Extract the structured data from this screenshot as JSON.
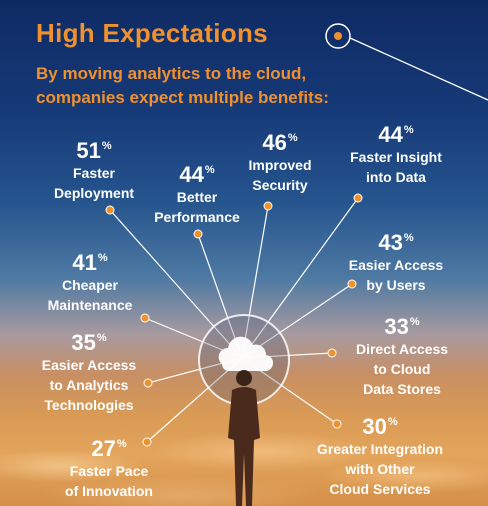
{
  "title": "High Expectations",
  "subtitle": "By moving analytics to the cloud, companies expect multiple benefits:",
  "stats": [
    {
      "pct": "51",
      "label1": "Faster",
      "label2": "Deployment"
    },
    {
      "pct": "44",
      "label1": "Better",
      "label2": "Performance"
    },
    {
      "pct": "46",
      "label1": "Improved",
      "label2": "Security"
    },
    {
      "pct": "44",
      "label1": "Faster Insight",
      "label2": "into Data"
    },
    {
      "pct": "43",
      "label1": "Easier Access",
      "label2": "by Users"
    },
    {
      "pct": "41",
      "label1": "Cheaper",
      "label2": "Maintenance"
    },
    {
      "pct": "35",
      "label1": "Easier Access",
      "label2": "to Analytics",
      "label3": "Technologies"
    },
    {
      "pct": "33",
      "label1": "Direct Access",
      "label2": "to Cloud",
      "label3": "Data Stores"
    },
    {
      "pct": "27",
      "label1": "Faster Pace",
      "label2": "of Innovation"
    },
    {
      "pct": "30",
      "label1": "Greater Integration",
      "label2": "with Other",
      "label3": "Cloud Services"
    }
  ],
  "percent_sign": "%",
  "icons": {
    "hub": "cloud-icon",
    "figure": "person-silhouette",
    "pointer": "target-dot-icon"
  },
  "colors": {
    "accent": "#f0912e",
    "text": "#ffffff"
  }
}
